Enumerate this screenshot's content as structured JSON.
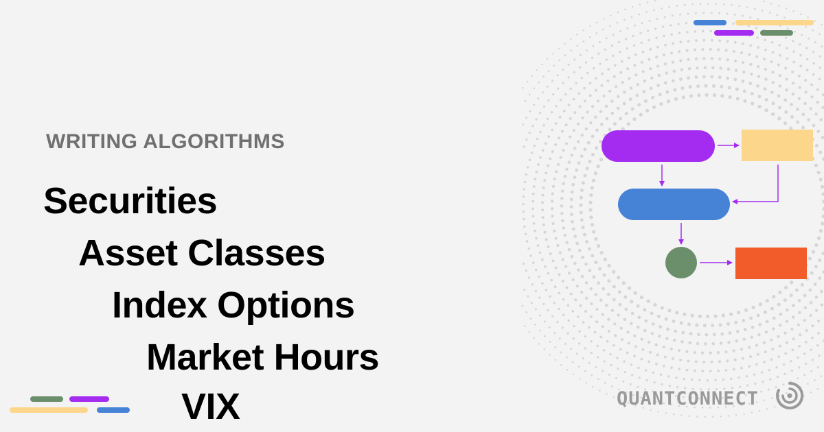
{
  "header": {
    "eyebrow": "WRITING ALGORITHMS"
  },
  "breadcrumb": {
    "items": [
      "Securities",
      "Asset Classes",
      "Index Options",
      "Market Hours",
      "VIX"
    ]
  },
  "brand": {
    "name": "QUANTCONNECT",
    "logo_icon": "quantconnect-logo-icon"
  },
  "colors": {
    "background": "#f3f3f3",
    "purple": "#a42cf0",
    "yellow": "#fcd68a",
    "blue": "#4682d6",
    "green": "#6b8e6b",
    "orange": "#f25c2a",
    "eyebrow": "#707070",
    "title": "#000000",
    "brand": "#9a9a9a"
  }
}
